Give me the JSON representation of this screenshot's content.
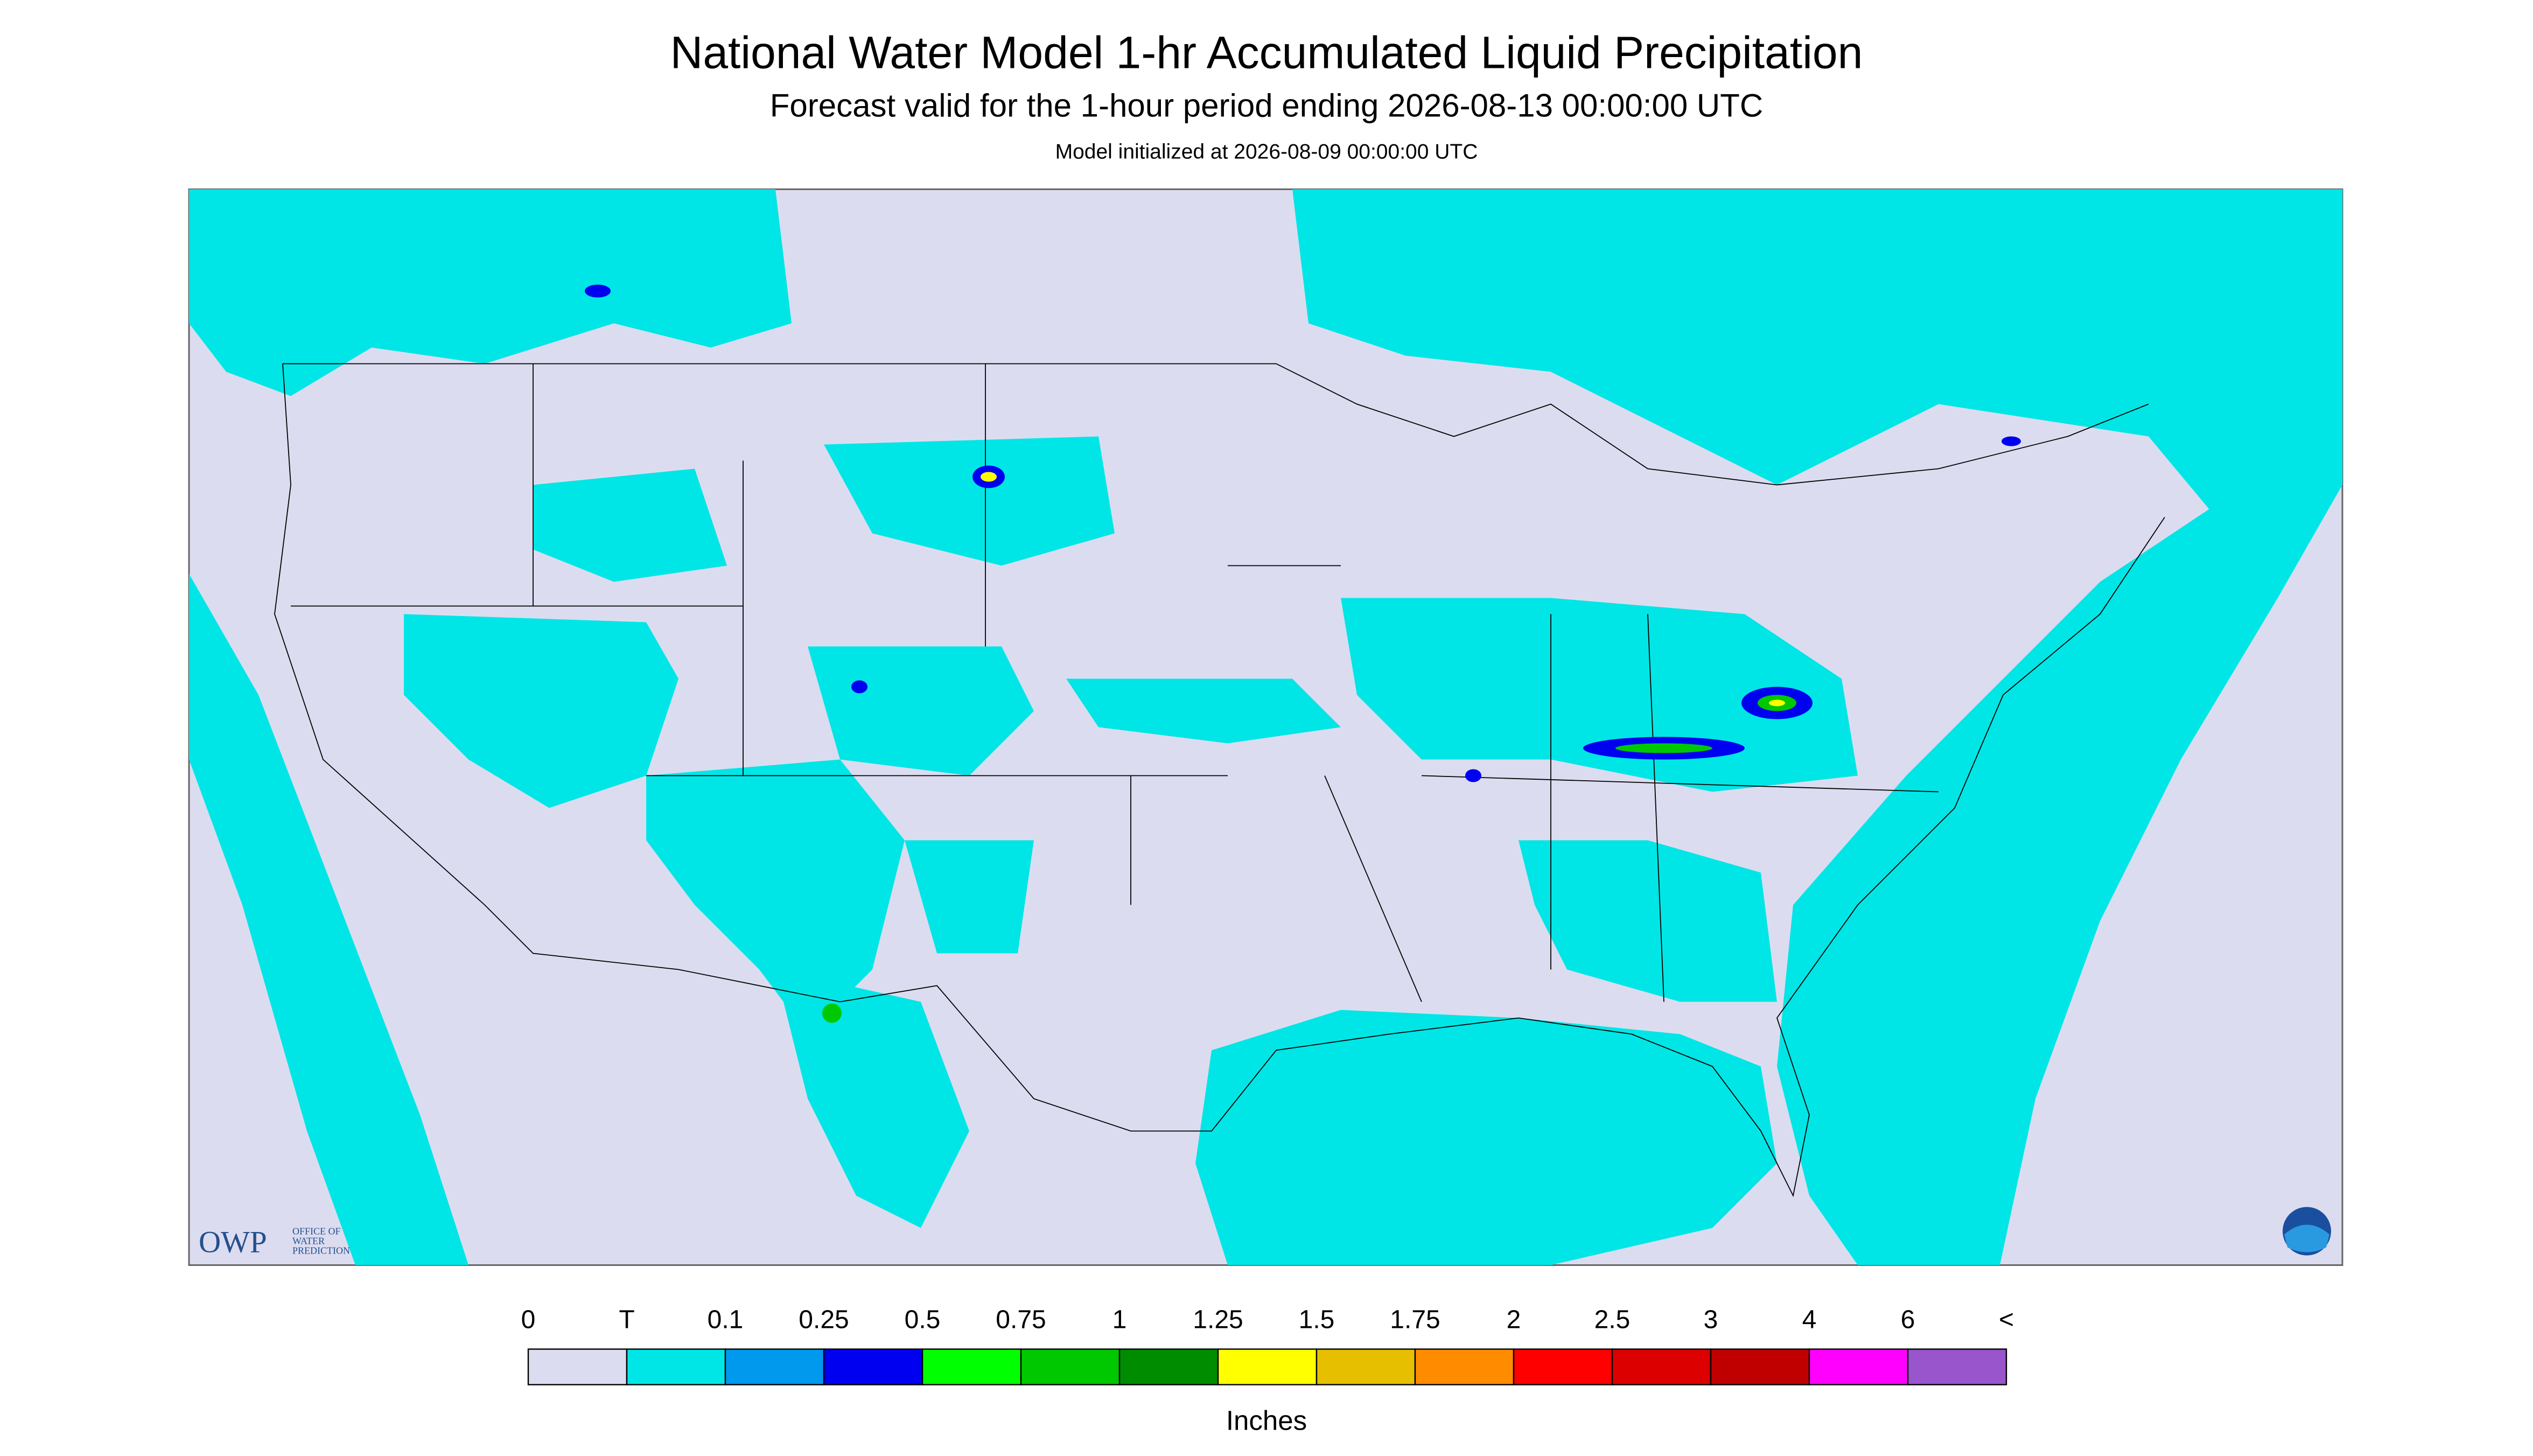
{
  "header": {
    "title": "National Water Model 1-hr Accumulated Liquid Precipitation",
    "subtitle": "Forecast valid for the 1-hour period ending 2026-08-13 00:00:00 UTC",
    "initialized": "Model initialized at 2026-08-09 00:00:00 UTC"
  },
  "legend": {
    "labels": [
      "0",
      "T",
      "0.1",
      "0.25",
      "0.5",
      "0.75",
      "1",
      "1.25",
      "1.5",
      "1.75",
      "2",
      "2.5",
      "3",
      "4",
      "6",
      "<"
    ],
    "colors": [
      "#dcdcf0",
      "#00e6e6",
      "#0099ee",
      "#0000f0",
      "#00ff00",
      "#00c800",
      "#008c00",
      "#ffff00",
      "#e6c000",
      "#ff8c00",
      "#ff0000",
      "#dc0000",
      "#c00000",
      "#ff00ff",
      "#9955cc"
    ],
    "unit": "Inches"
  },
  "logo": {
    "owp": "OWP",
    "office": [
      "OFFICE OF",
      "WATER",
      "PREDICTION"
    ]
  }
}
